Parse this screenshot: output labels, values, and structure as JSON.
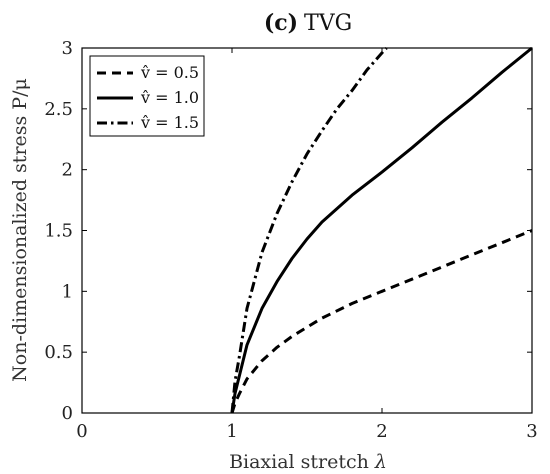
{
  "chart_data": {
    "type": "line",
    "title_prefix": "(c)",
    "title_name": "TVG",
    "xlabel_text": "Biaxial stretch",
    "xlabel_symbol": "λ",
    "ylabel": "Non-dimensionalized stress P/μ",
    "xlim": [
      0,
      3
    ],
    "ylim": [
      0,
      3
    ],
    "xticks": [
      0,
      1,
      2,
      3
    ],
    "xtick_labels": [
      "0",
      "1",
      "2",
      "3"
    ],
    "yticks": [
      0,
      0.5,
      1,
      1.5,
      2,
      2.5,
      3
    ],
    "ytick_labels": [
      "0",
      "0.5",
      "1",
      "1.5",
      "2",
      "2.5",
      "3"
    ],
    "grid": false,
    "legend_position": "top-left",
    "series": [
      {
        "name": "v̂ = 0.5",
        "style": "dashed",
        "x": [
          1.0,
          1.02,
          1.05,
          1.1,
          1.2,
          1.3,
          1.4,
          1.6,
          1.8,
          2.0,
          2.2,
          2.4,
          2.6,
          2.8,
          3.0
        ],
        "y": [
          0.0,
          0.08,
          0.16,
          0.28,
          0.43,
          0.54,
          0.63,
          0.78,
          0.9,
          1.0,
          1.1,
          1.2,
          1.3,
          1.4,
          1.5
        ]
      },
      {
        "name": "v̂ = 1.0",
        "style": "solid",
        "x": [
          1.0,
          1.02,
          1.05,
          1.1,
          1.2,
          1.3,
          1.4,
          1.5,
          1.6,
          1.8,
          2.0,
          2.2,
          2.4,
          2.6,
          2.8,
          3.0
        ],
        "y": [
          0.0,
          0.16,
          0.31,
          0.56,
          0.86,
          1.08,
          1.27,
          1.43,
          1.57,
          1.79,
          1.98,
          2.18,
          2.39,
          2.59,
          2.8,
          3.0
        ]
      },
      {
        "name": "v̂ = 1.5",
        "style": "dashdot",
        "x": [
          1.0,
          1.02,
          1.05,
          1.1,
          1.2,
          1.3,
          1.4,
          1.5,
          1.6,
          1.7,
          1.8,
          1.9,
          2.0,
          2.03
        ],
        "y": [
          0.0,
          0.26,
          0.47,
          0.86,
          1.32,
          1.64,
          1.9,
          2.13,
          2.32,
          2.5,
          2.65,
          2.82,
          2.96,
          3.0
        ]
      }
    ]
  }
}
